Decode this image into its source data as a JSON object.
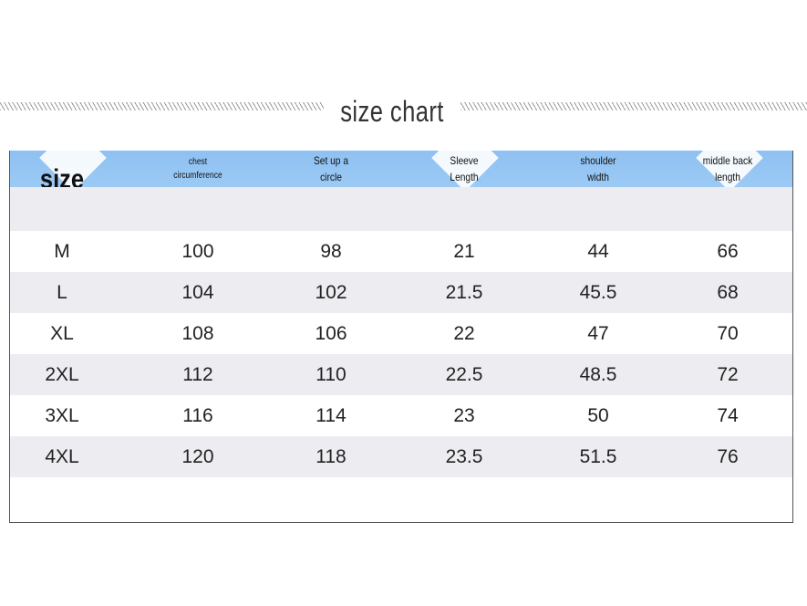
{
  "header": {
    "title": "size chart"
  },
  "table": {
    "columns": [
      [
        "size"
      ],
      [
        "chest",
        "circumference"
      ],
      [
        "Set up a",
        "circle"
      ],
      [
        "Sleeve",
        "Length"
      ],
      [
        "shoulder",
        "width"
      ],
      [
        "middle back",
        "length"
      ]
    ],
    "rows": [
      [
        "M",
        100,
        98,
        21,
        44,
        66
      ],
      [
        "L",
        104,
        102,
        21.5,
        45.5,
        68
      ],
      [
        "XL",
        108,
        106,
        22,
        47,
        70
      ],
      [
        "2XL",
        112,
        110,
        22.5,
        48.5,
        72
      ],
      [
        "3XL",
        116,
        114,
        23,
        50,
        74
      ],
      [
        "4XL",
        120,
        118,
        23.5,
        51.5,
        76
      ]
    ]
  }
}
